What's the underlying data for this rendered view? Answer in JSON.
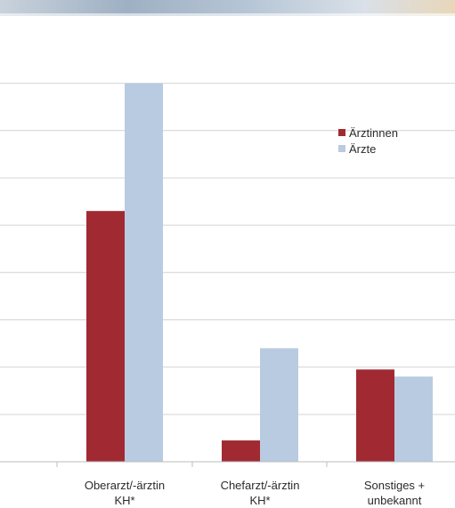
{
  "chart_data": {
    "type": "bar",
    "categories": [
      "Oberarzt/-ärztin KH*",
      "Chefarzt/-ärztin KH*",
      "Sonstiges + unbekannt"
    ],
    "category_lines": [
      [
        "Oberarzt/-ärztin",
        "KH*"
      ],
      [
        "Chefarzt/-ärztin",
        "KH*"
      ],
      [
        "Sonstiges +",
        "unbekannt"
      ]
    ],
    "series": [
      {
        "name": "Ärztinnen",
        "color": "#a12a32",
        "values": [
          5.3,
          0.45,
          1.95
        ]
      },
      {
        "name": "Ärzte",
        "color": "#b9cbe0",
        "values": [
          8.0,
          2.4,
          1.8
        ]
      }
    ],
    "ylim": [
      0,
      8.5
    ],
    "grid": true,
    "legend_position": "top-right"
  }
}
